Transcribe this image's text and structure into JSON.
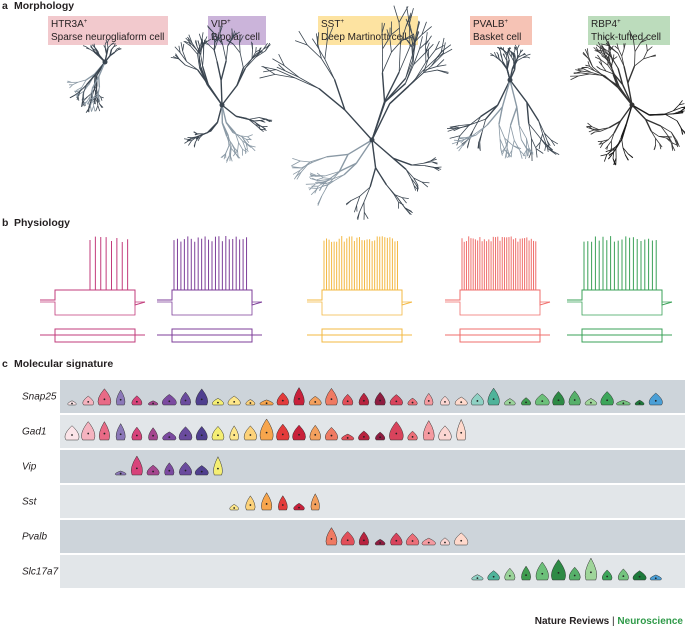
{
  "panels": [
    {
      "letter": "a",
      "title": "Morphology"
    },
    {
      "letter": "b",
      "title": "Physiology"
    },
    {
      "letter": "c",
      "title": "Molecular signature"
    }
  ],
  "cell_types": [
    {
      "marker": "HTR3A",
      "sup": "+",
      "name": "Sparse neurogliaform cell"
    },
    {
      "marker": "VIP",
      "sup": "+",
      "name": "Bipolar cell"
    },
    {
      "marker": "SST",
      "sup": "+",
      "name": "Deep Martinotti cell"
    },
    {
      "marker": "PVALB",
      "sup": "+",
      "name": "Basket cell"
    },
    {
      "marker": "RBP4",
      "sup": "+",
      "name": "Thick-tufted cell"
    }
  ],
  "genes": [
    "Snap25",
    "Gad1",
    "Vip",
    "Sst",
    "Pvalb",
    "Slc17a7"
  ],
  "footer": {
    "journal": "Nature Reviews",
    "separator": "|",
    "section": "Neuroscience"
  }
}
